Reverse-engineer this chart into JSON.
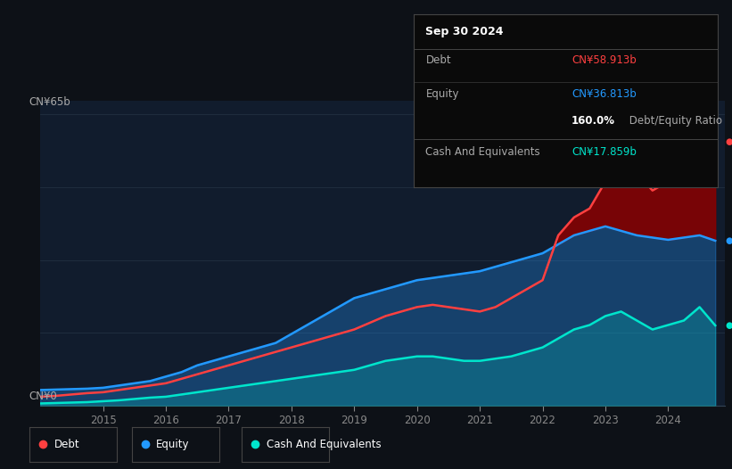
{
  "background_color": "#0d1117",
  "plot_bg_color": "#111c2d",
  "title": "Sep 30 2024",
  "ylabel_top": "CN¥65b",
  "ylabel_bottom": "CN¥0",
  "debt_color": "#ff4040",
  "equity_color": "#2299ff",
  "cash_color": "#00e5cc",
  "tooltip_bg": "#0a0a0a",
  "years": [
    2014.0,
    2014.25,
    2014.5,
    2014.75,
    2015.0,
    2015.25,
    2015.5,
    2015.75,
    2016.0,
    2016.25,
    2016.5,
    2016.75,
    2017.0,
    2017.25,
    2017.5,
    2017.75,
    2018.0,
    2018.25,
    2018.5,
    2018.75,
    2019.0,
    2019.25,
    2019.5,
    2019.75,
    2020.0,
    2020.25,
    2020.5,
    2020.75,
    2021.0,
    2021.25,
    2021.5,
    2021.75,
    2022.0,
    2022.25,
    2022.5,
    2022.75,
    2023.0,
    2023.25,
    2023.5,
    2023.75,
    2024.0,
    2024.25,
    2024.5,
    2024.75
  ],
  "debt": [
    2.0,
    2.2,
    2.5,
    2.8,
    3.0,
    3.5,
    4.0,
    4.5,
    5.0,
    6.0,
    7.0,
    8.0,
    9.0,
    10.0,
    11.0,
    12.0,
    13.0,
    14.0,
    15.0,
    16.0,
    17.0,
    18.5,
    20.0,
    21.0,
    22.0,
    22.5,
    22.0,
    21.5,
    21.0,
    22.0,
    24.0,
    26.0,
    28.0,
    38.0,
    42.0,
    44.0,
    50.0,
    55.0,
    52.0,
    48.0,
    50.0,
    60.0,
    65.0,
    58.9
  ],
  "equity": [
    3.5,
    3.6,
    3.7,
    3.8,
    4.0,
    4.5,
    5.0,
    5.5,
    6.5,
    7.5,
    9.0,
    10.0,
    11.0,
    12.0,
    13.0,
    14.0,
    16.0,
    18.0,
    20.0,
    22.0,
    24.0,
    25.0,
    26.0,
    27.0,
    28.0,
    28.5,
    29.0,
    29.5,
    30.0,
    31.0,
    32.0,
    33.0,
    34.0,
    36.0,
    38.0,
    39.0,
    40.0,
    39.0,
    38.0,
    37.5,
    37.0,
    37.5,
    38.0,
    36.8
  ],
  "cash": [
    0.5,
    0.6,
    0.7,
    0.8,
    1.0,
    1.2,
    1.5,
    1.8,
    2.0,
    2.5,
    3.0,
    3.5,
    4.0,
    4.5,
    5.0,
    5.5,
    6.0,
    6.5,
    7.0,
    7.5,
    8.0,
    9.0,
    10.0,
    10.5,
    11.0,
    11.0,
    10.5,
    10.0,
    10.0,
    10.5,
    11.0,
    12.0,
    13.0,
    15.0,
    17.0,
    18.0,
    20.0,
    21.0,
    19.0,
    17.0,
    18.0,
    19.0,
    22.0,
    17.9
  ],
  "xlim": [
    2014.0,
    2024.9
  ],
  "ylim": [
    0,
    68
  ],
  "xticks": [
    2015,
    2016,
    2017,
    2018,
    2019,
    2020,
    2021,
    2022,
    2023,
    2024
  ],
  "legend_labels": [
    "Debt",
    "Equity",
    "Cash And Equivalents"
  ],
  "tooltip_debt": "CN¥58.913b",
  "tooltip_equity": "CN¥36.813b",
  "tooltip_ratio": "160.0%",
  "tooltip_ratio_label": " Debt/Equity Ratio",
  "tooltip_cash": "CN¥17.859b",
  "tooltip_debt_label": "Debt",
  "tooltip_equity_label": "Equity",
  "tooltip_cash_label": "Cash And Equivalents"
}
